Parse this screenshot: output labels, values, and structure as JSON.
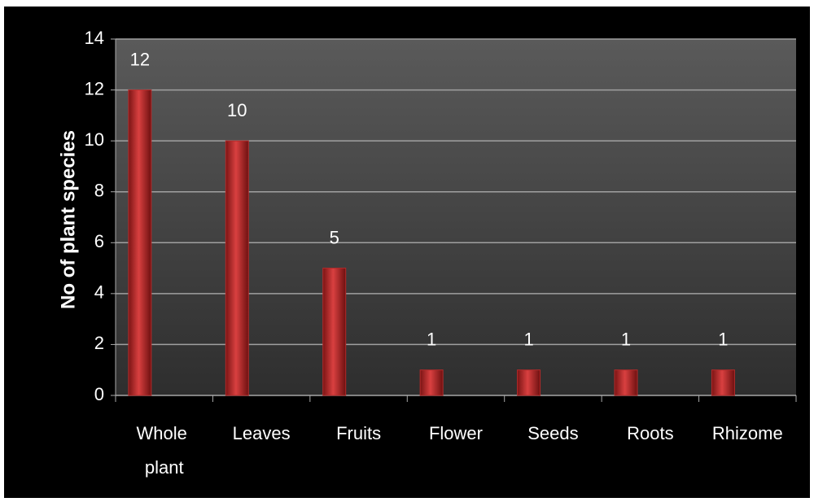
{
  "chart_data": {
    "type": "bar",
    "y_axis_label": "No of plant species",
    "categories": [
      "Whole plant",
      "Leaves",
      "Fruits",
      "Flower",
      "Seeds",
      "Roots",
      "Rhizome"
    ],
    "values": [
      12,
      10,
      5,
      1,
      1,
      1,
      1
    ],
    "color": "#b32a2a",
    "ylim": [
      0,
      14
    ],
    "yticks": [
      0,
      2,
      4,
      6,
      8,
      10,
      12,
      14
    ],
    "grid": true
  }
}
